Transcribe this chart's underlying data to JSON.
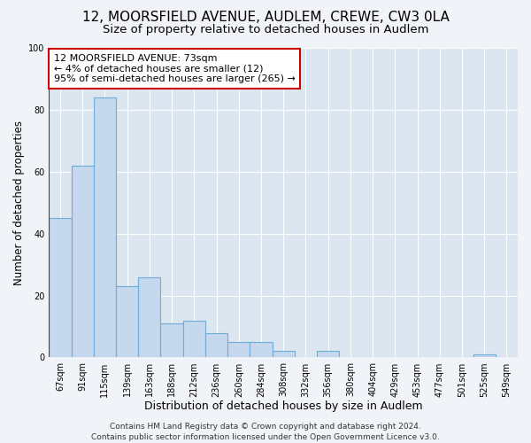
{
  "title": "12, MOORSFIELD AVENUE, AUDLEM, CREWE, CW3 0LA",
  "subtitle": "Size of property relative to detached houses in Audlem",
  "xlabel": "Distribution of detached houses by size in Audlem",
  "ylabel": "Number of detached properties",
  "bar_labels": [
    "67sqm",
    "91sqm",
    "115sqm",
    "139sqm",
    "163sqm",
    "188sqm",
    "212sqm",
    "236sqm",
    "260sqm",
    "284sqm",
    "308sqm",
    "332sqm",
    "356sqm",
    "380sqm",
    "404sqm",
    "429sqm",
    "453sqm",
    "477sqm",
    "501sqm",
    "525sqm",
    "549sqm"
  ],
  "bar_values": [
    45,
    62,
    84,
    23,
    26,
    11,
    12,
    8,
    5,
    5,
    2,
    0,
    2,
    0,
    0,
    0,
    0,
    0,
    0,
    1,
    0
  ],
  "bar_color": "#c5d8ed",
  "bar_edge_color": "#6aaed6",
  "annotation_text": "12 MOORSFIELD AVENUE: 73sqm\n← 4% of detached houses are smaller (12)\n95% of semi-detached houses are larger (265) →",
  "annotation_box_facecolor": "#ffffff",
  "annotation_box_edgecolor": "#cc0000",
  "marker_line_color": "#cc0000",
  "ylim": [
    0,
    100
  ],
  "yticks": [
    0,
    20,
    40,
    60,
    80,
    100
  ],
  "footer_text": "Contains HM Land Registry data © Crown copyright and database right 2024.\nContains public sector information licensed under the Open Government Licence v3.0.",
  "fig_facecolor": "#f0f4f8",
  "axes_facecolor": "#dce6f0",
  "grid_color": "#ffffff",
  "title_fontsize": 11,
  "subtitle_fontsize": 9.5,
  "xlabel_fontsize": 9,
  "ylabel_fontsize": 8.5,
  "footer_fontsize": 6.5,
  "annotation_fontsize": 8,
  "tick_fontsize": 7
}
